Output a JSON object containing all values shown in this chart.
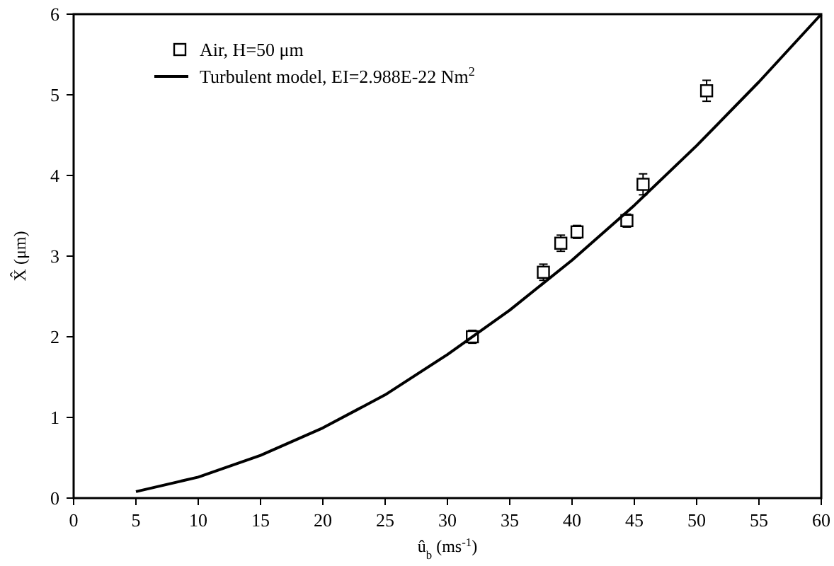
{
  "chart_data": {
    "type": "scatter",
    "xlabel": "û$_{b}$ (ms$^{-1}$)",
    "ylabel": "X̂ (μm)",
    "xlim": [
      0,
      60
    ],
    "xticks": [
      0,
      5,
      10,
      15,
      20,
      25,
      30,
      35,
      40,
      45,
      50,
      55,
      60
    ],
    "ylim": [
      0,
      6
    ],
    "yticks": [
      0,
      1,
      2,
      3,
      4,
      5,
      6
    ],
    "grid": false,
    "legend": "top left",
    "series": [
      {
        "name": "Air, H=50  μm",
        "marker": "square",
        "color": "#000000",
        "x": [
          32,
          37.7,
          39.1,
          40.4,
          44.4,
          45.7,
          50.8
        ],
        "values": [
          2.0,
          2.8,
          3.16,
          3.3,
          3.44,
          3.89,
          5.05
        ],
        "errors": [
          0.08,
          0.1,
          0.1,
          0.08,
          0.08,
          0.13,
          0.13
        ]
      },
      {
        "name": "Turbulent model, EI=2.988E-22 Nm$^{2}$",
        "type": "line",
        "marker": "none",
        "line_style": "solid",
        "color": "#000000",
        "x": [
          5,
          10,
          15,
          20,
          25,
          30,
          35,
          40,
          45,
          50,
          55,
          60
        ],
        "values": [
          0.08,
          0.26,
          0.53,
          0.87,
          1.28,
          1.78,
          2.33,
          2.95,
          3.63,
          4.37,
          5.16,
          6.0
        ]
      }
    ]
  }
}
